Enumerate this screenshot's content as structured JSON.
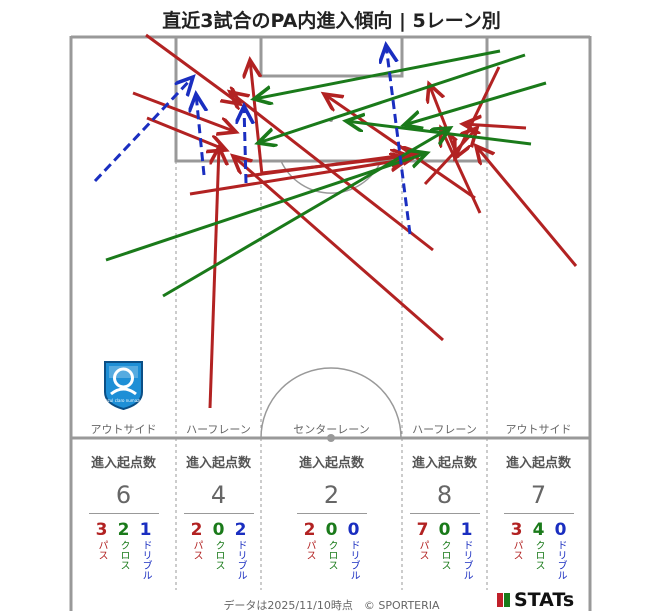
{
  "title": "直近3試合のPA内進入傾向 | 5レーン別",
  "colors": {
    "pass": "#b22222",
    "cross": "#1a7a1a",
    "dribble": "#1a2ec0"
  },
  "lanes": [
    {
      "name": "アウトサイド",
      "header": "進入起点数",
      "total": "6",
      "pass": "3",
      "cross": "2",
      "dribble": "1"
    },
    {
      "name": "ハーフレーン",
      "header": "進入起点数",
      "total": "4",
      "pass": "2",
      "cross": "0",
      "dribble": "2"
    },
    {
      "name": "センターレーン",
      "header": "進入起点数",
      "total": "2",
      "pass": "2",
      "cross": "0",
      "dribble": "0"
    },
    {
      "name": "ハーフレーン",
      "header": "進入起点数",
      "total": "8",
      "pass": "7",
      "cross": "0",
      "dribble": "1"
    },
    {
      "name": "アウトサイド",
      "header": "進入起点数",
      "total": "7",
      "pass": "3",
      "cross": "4",
      "dribble": "0"
    }
  ],
  "labels": {
    "pass": "パス",
    "cross": "クロス",
    "dribble": "ドリブル"
  },
  "club_logo_text": "azul claro numazu",
  "footer": {
    "credit": "データは2025/11/10時点　© SPORTERIA",
    "brand": "STATs"
  }
}
